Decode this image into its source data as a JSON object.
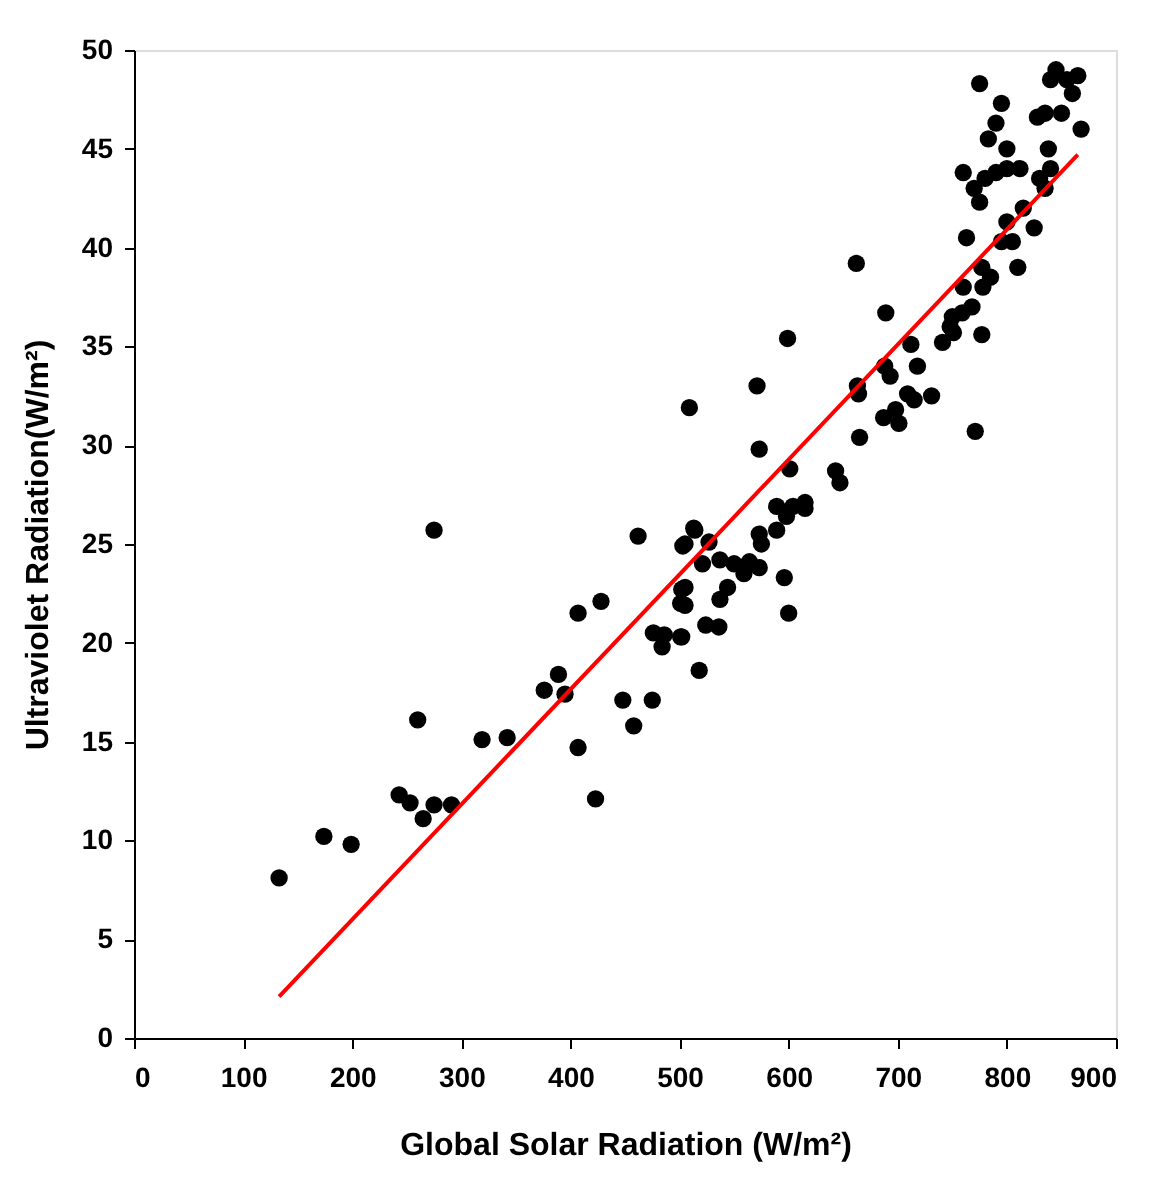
{
  "chart_data": {
    "type": "scatter",
    "xlabel": "Global Solar Radiation (W/m²)",
    "ylabel": "Ultraviolet Radiation(W/m²)",
    "xlim": [
      0,
      900
    ],
    "xticks": [
      0,
      100,
      200,
      300,
      400,
      500,
      600,
      700,
      800,
      900
    ],
    "ylim": [
      0,
      50
    ],
    "yticks": [
      0,
      5,
      10,
      15,
      20,
      25,
      30,
      35,
      40,
      45,
      50
    ],
    "grid": false,
    "series": [
      {
        "type": "scatter",
        "color": "#000000",
        "marker": "circle",
        "x": [
          133,
          174,
          199,
          243,
          253,
          265,
          275,
          291,
          260,
          275,
          319,
          342,
          376,
          389,
          395,
          407,
          423,
          407,
          428,
          448,
          458,
          475,
          462,
          476,
          486,
          501,
          484,
          502,
          501,
          503,
          514,
          518,
          599,
          571,
          509,
          573,
          601,
          643,
          647,
          665,
          663,
          664,
          688,
          693,
          712,
          718,
          687,
          698,
          701,
          709,
          715,
          731,
          741,
          748,
          751,
          771,
          777,
          689,
          759,
          589,
          598,
          604,
          615,
          615,
          573,
          575,
          589,
          513,
          527,
          505,
          521,
          537,
          550,
          559,
          564,
          573,
          596,
          600,
          505,
          505,
          544,
          537,
          524,
          536,
          502,
          775,
          845,
          855,
          865,
          840,
          860,
          868,
          850,
          835,
          828,
          838,
          840,
          795,
          790,
          800,
          783,
          780,
          760,
          770,
          775,
          790,
          800,
          812,
          830,
          815,
          800,
          805,
          795,
          785,
          778,
          760,
          768,
          763,
          777,
          825,
          810,
          835,
          750,
          662
        ],
        "values": [
          8.1,
          10.2,
          9.8,
          12.3,
          11.9,
          11.1,
          11.8,
          11.8,
          16.1,
          25.7,
          15.1,
          15.2,
          17.6,
          18.4,
          17.4,
          14.7,
          12.1,
          21.5,
          22.1,
          17.1,
          15.8,
          17.1,
          25.4,
          20.5,
          20.4,
          20.3,
          19.8,
          22.7,
          22.0,
          24.9,
          25.7,
          18.6,
          35.4,
          33.0,
          31.9,
          29.8,
          28.8,
          28.7,
          28.1,
          30.4,
          33.0,
          32.6,
          34.0,
          33.5,
          35.1,
          34.0,
          31.4,
          31.8,
          31.1,
          32.6,
          32.3,
          32.5,
          35.2,
          36.0,
          35.7,
          30.7,
          35.6,
          36.7,
          36.7,
          26.9,
          26.4,
          26.9,
          27.1,
          26.8,
          25.5,
          25.0,
          25.7,
          25.8,
          25.1,
          25.0,
          24.0,
          24.2,
          24.0,
          23.5,
          24.1,
          23.8,
          23.3,
          21.5,
          22.8,
          21.9,
          22.8,
          22.2,
          20.9,
          20.8,
          20.3,
          48.3,
          49.0,
          48.5,
          48.7,
          48.5,
          47.8,
          46.0,
          46.8,
          46.8,
          46.6,
          45.0,
          44.0,
          47.3,
          46.3,
          45.0,
          45.5,
          43.5,
          43.8,
          43.0,
          42.3,
          43.8,
          44.0,
          44.0,
          43.5,
          42.0,
          41.3,
          40.3,
          40.3,
          38.5,
          38.0,
          38.0,
          37.0,
          40.5,
          39.0,
          41.0,
          39.0,
          43.0,
          36.5,
          39.2
        ]
      },
      {
        "type": "line",
        "color": "#ff0000",
        "marker": "none",
        "line_style": "solid",
        "x": [
          133,
          865
        ],
        "values": [
          2.1,
          44.7
        ]
      }
    ]
  }
}
